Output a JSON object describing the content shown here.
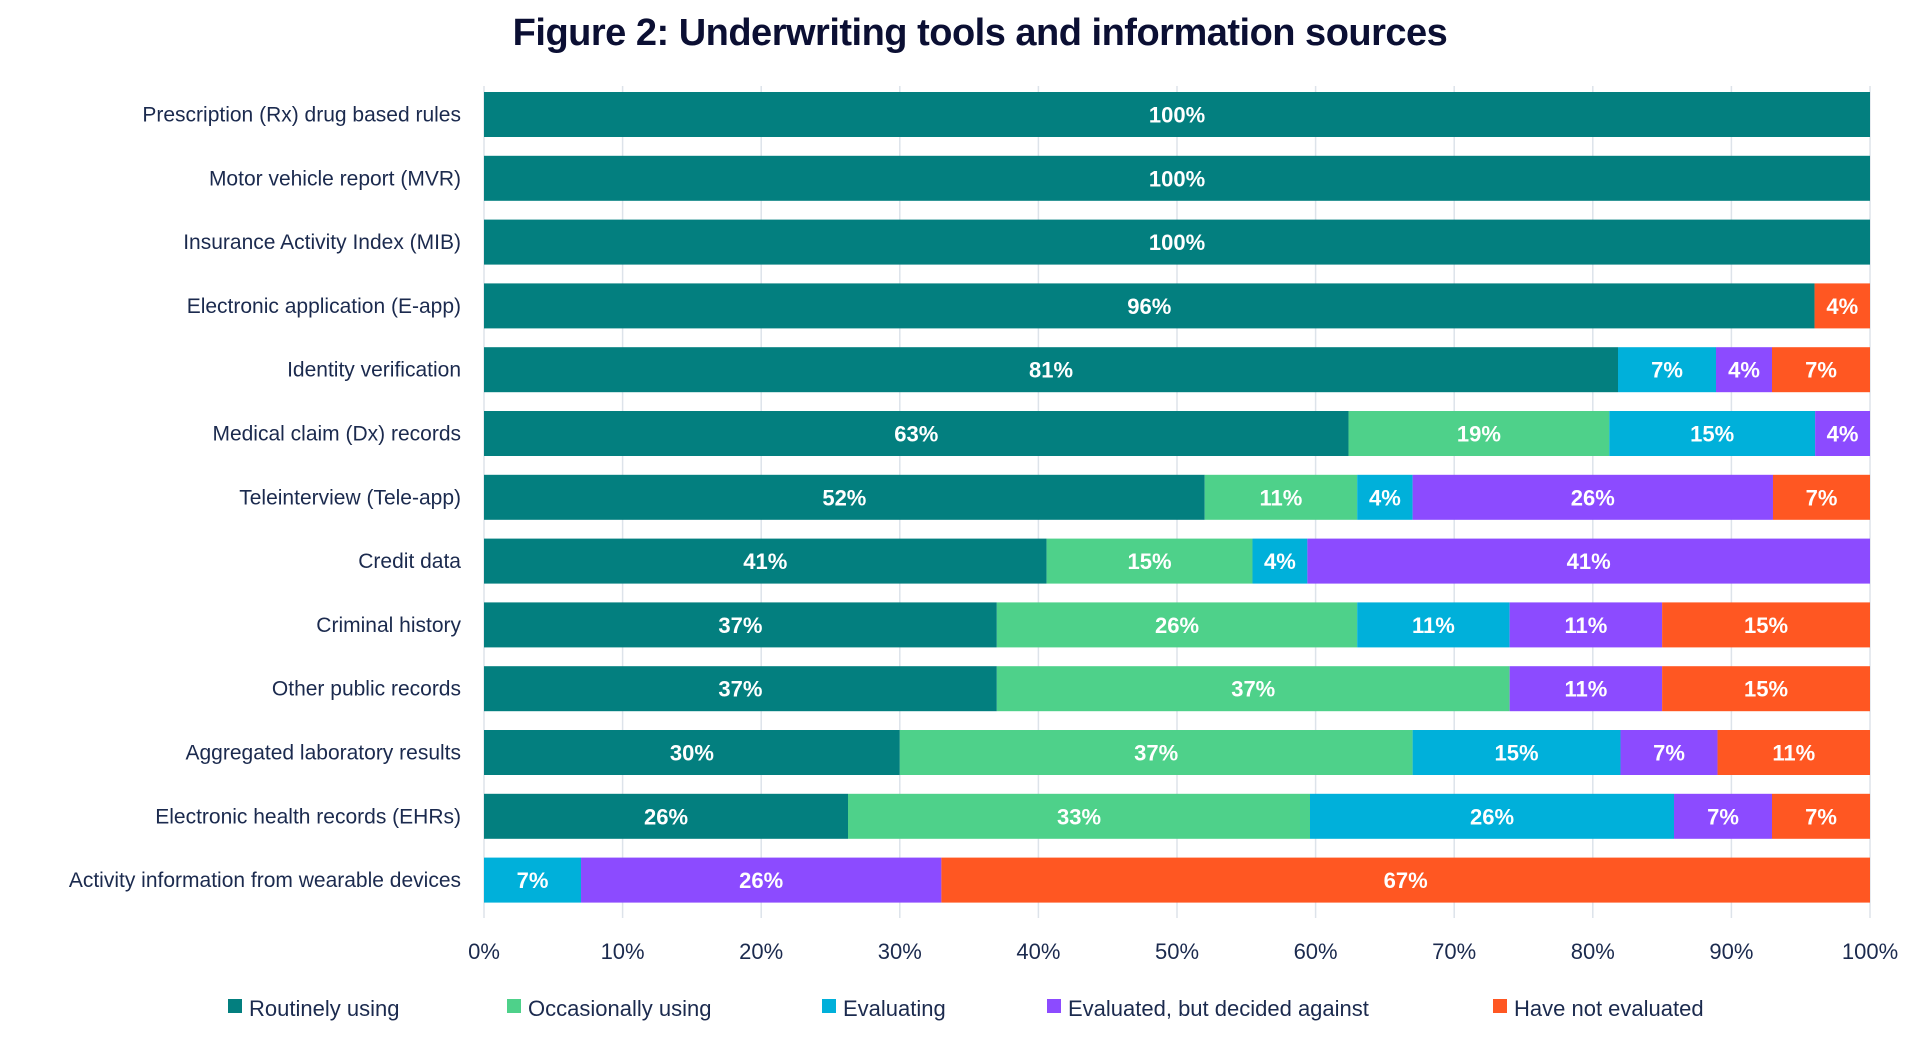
{
  "chart_data": {
    "type": "bar",
    "orientation": "horizontal",
    "stacked": true,
    "title": "Figure 2: Underwriting tools and information sources",
    "xlabel": "",
    "ylabel": "",
    "xlim": [
      0,
      100
    ],
    "x_ticks": [
      "0%",
      "10%",
      "20%",
      "30%",
      "40%",
      "50%",
      "60%",
      "70%",
      "80%",
      "90%",
      "100%"
    ],
    "grid": "vertical",
    "legend_position": "bottom",
    "categories": [
      "Prescription (Rx) drug based rules",
      "Motor vehicle report (MVR)",
      "Insurance Activity Index (MIB)",
      "Electronic application (E-app)",
      "Identity verification",
      "Medical claim (Dx) records",
      "Teleinterview (Tele-app)",
      "Credit data",
      "Criminal history",
      "Other public records",
      "Aggregated laboratory results",
      "Electronic health records (EHRs)",
      "Activity information from wearable devices"
    ],
    "series": [
      {
        "name": "Routinely using",
        "color": "#037f7f",
        "values": [
          100,
          100,
          100,
          96,
          81,
          63,
          52,
          41,
          37,
          37,
          30,
          26,
          0
        ]
      },
      {
        "name": "Occasionally using",
        "color": "#4ed18a",
        "values": [
          0,
          0,
          0,
          0,
          0,
          19,
          11,
          15,
          26,
          37,
          37,
          33,
          0
        ]
      },
      {
        "name": "Evaluating",
        "color": "#00b0da",
        "values": [
          0,
          0,
          0,
          0,
          7,
          15,
          4,
          4,
          11,
          0,
          15,
          26,
          7
        ]
      },
      {
        "name": "Evaluated, but decided against",
        "color": "#8c4bff",
        "values": [
          0,
          0,
          0,
          0,
          4,
          4,
          26,
          41,
          11,
          11,
          7,
          7,
          26
        ]
      },
      {
        "name": "Have not evaluated",
        "color": "#ff5722",
        "values": [
          0,
          0,
          0,
          4,
          7,
          0,
          7,
          0,
          15,
          15,
          11,
          7,
          67
        ]
      }
    ]
  }
}
